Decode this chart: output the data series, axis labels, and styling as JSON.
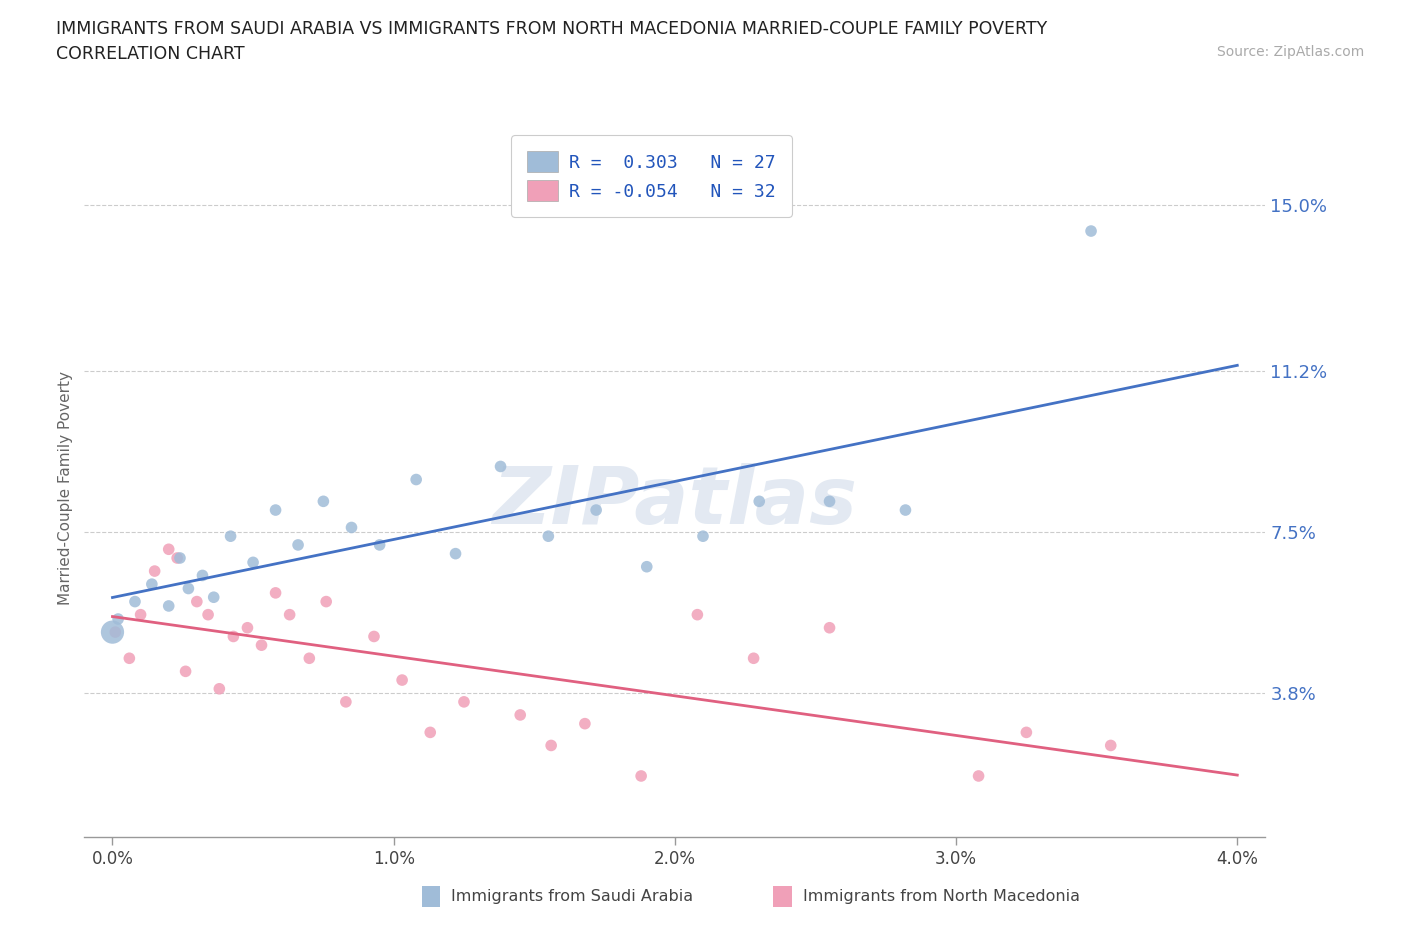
{
  "title_line1": "IMMIGRANTS FROM SAUDI ARABIA VS IMMIGRANTS FROM NORTH MACEDONIA MARRIED-COUPLE FAMILY POVERTY",
  "title_line2": "CORRELATION CHART",
  "source": "Source: ZipAtlas.com",
  "xlabel_blue": "Immigrants from Saudi Arabia",
  "xlabel_pink": "Immigrants from North Macedonia",
  "ylabel": "Married-Couple Family Poverty",
  "r_blue": 0.303,
  "n_blue": 27,
  "r_pink": -0.054,
  "n_pink": 32,
  "color_blue": "#a0bcd8",
  "color_pink": "#f0a0b8",
  "line_blue": "#4472c4",
  "line_pink": "#e06080",
  "x_blue": [
    0.02,
    0.08,
    0.14,
    0.2,
    0.24,
    0.27,
    0.32,
    0.36,
    0.42,
    0.5,
    0.58,
    0.66,
    0.75,
    0.85,
    0.95,
    1.08,
    1.22,
    1.38,
    1.55,
    1.72,
    1.9,
    2.1,
    2.3,
    2.55,
    2.82,
    3.48,
    0.0
  ],
  "y_blue": [
    5.5,
    5.9,
    6.3,
    5.8,
    6.9,
    6.2,
    6.5,
    6.0,
    7.4,
    6.8,
    8.0,
    7.2,
    8.2,
    7.6,
    7.2,
    8.7,
    7.0,
    9.0,
    7.4,
    8.0,
    6.7,
    7.4,
    8.2,
    8.2,
    8.0,
    14.4,
    5.2
  ],
  "s_blue": [
    70,
    70,
    70,
    70,
    70,
    70,
    70,
    70,
    70,
    70,
    70,
    70,
    70,
    70,
    70,
    70,
    70,
    70,
    70,
    70,
    70,
    70,
    70,
    70,
    70,
    70,
    280
  ],
  "x_pink": [
    0.01,
    0.06,
    0.1,
    0.15,
    0.2,
    0.23,
    0.26,
    0.3,
    0.34,
    0.38,
    0.43,
    0.48,
    0.53,
    0.58,
    0.63,
    0.7,
    0.76,
    0.83,
    0.93,
    1.03,
    1.13,
    1.25,
    1.45,
    1.56,
    1.68,
    1.88,
    2.08,
    2.28,
    2.55,
    3.08,
    3.25,
    3.55
  ],
  "y_pink": [
    5.2,
    4.6,
    5.6,
    6.6,
    7.1,
    6.9,
    4.3,
    5.9,
    5.6,
    3.9,
    5.1,
    5.3,
    4.9,
    6.1,
    5.6,
    4.6,
    5.9,
    3.6,
    5.1,
    4.1,
    2.9,
    3.6,
    3.3,
    2.6,
    3.1,
    1.9,
    5.6,
    4.6,
    5.3,
    1.9,
    2.9,
    2.6
  ],
  "s_pink": [
    70,
    70,
    70,
    70,
    70,
    70,
    70,
    70,
    70,
    70,
    70,
    70,
    70,
    70,
    70,
    70,
    70,
    70,
    70,
    70,
    70,
    70,
    70,
    70,
    70,
    70,
    70,
    70,
    70,
    70,
    70,
    70
  ],
  "xlim": [
    -0.1,
    4.1
  ],
  "ylim": [
    0.5,
    16.5
  ],
  "yticks": [
    3.8,
    7.5,
    11.2,
    15.0
  ],
  "xticks": [
    0.0,
    1.0,
    2.0,
    3.0,
    4.0
  ],
  "xtick_labels": [
    "0.0%",
    "1.0%",
    "2.0%",
    "3.0%",
    "4.0%"
  ],
  "ytick_labels": [
    "3.8%",
    "7.5%",
    "11.2%",
    "15.0%"
  ],
  "watermark": "ZIPatlas",
  "background_color": "#ffffff",
  "legend_label_blue": "R =  0.303   N = 27",
  "legend_label_pink": "R = -0.054   N = 32"
}
